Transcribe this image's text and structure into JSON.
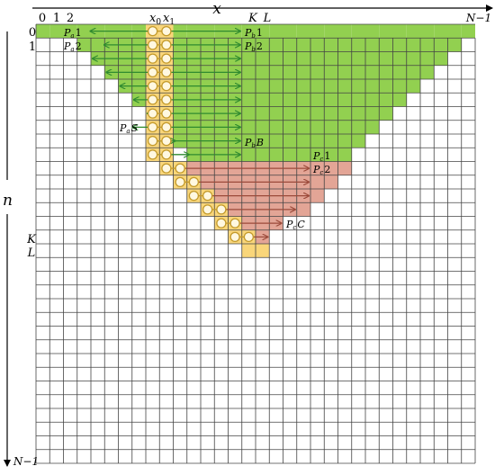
{
  "axes": {
    "x_label": "x",
    "n_label": "n",
    "x_ticks": {
      "zero": "0",
      "one": "1",
      "two": "2",
      "x0": "x",
      "x0_sub": "0",
      "x1": "x",
      "x1_sub": "1",
      "K": "K",
      "L": "L",
      "N1": "N−1"
    },
    "n_ticks": {
      "zero": "0",
      "one": "1",
      "K": "K",
      "L": "L",
      "N1": "N−1"
    }
  },
  "labels": {
    "pa1": {
      "main": "P",
      "sub": "a",
      "tail": "1"
    },
    "pa2": {
      "main": "P",
      "sub": "a",
      "tail": "2"
    },
    "paS": {
      "main": "P",
      "sub": "a",
      "tail": "S"
    },
    "pb1": {
      "main": "P",
      "sub": "b",
      "tail": "1"
    },
    "pb2": {
      "main": "P",
      "sub": "b",
      "tail": "2"
    },
    "pbB": {
      "main": "P",
      "sub": "b",
      "tail": "B"
    },
    "pc1": {
      "main": "P",
      "sub": "c",
      "tail": "1"
    },
    "pc2": {
      "main": "P",
      "sub": "c",
      "tail": "2"
    },
    "pcC": {
      "main": "P",
      "sub": "c",
      "tail": "C"
    }
  },
  "colors": {
    "green_fill": "#92d050",
    "green_arrow": "#2f8a2f",
    "red_fill": "#e3a596",
    "red_arrow": "#9b4a3a",
    "yellow_fill": "#f9d67a",
    "circle_stroke": "#c39a2b",
    "grid": "#444444"
  }
}
